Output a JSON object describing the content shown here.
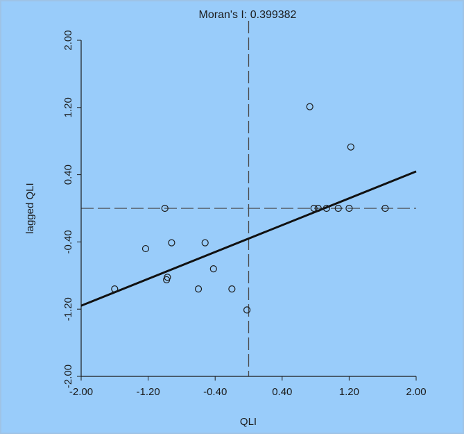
{
  "colors": {
    "background": "#99ccfa",
    "axis": "#1b1b1b",
    "points": "#1b1b1b",
    "regression_line": "#111111",
    "mean_lines": "#4a4a4a"
  },
  "chart_data": {
    "type": "scatter",
    "title": "Moran's I: 0.399382",
    "xlabel": "QLI",
    "ylabel": "lagged QLI",
    "xlim": [
      -2.0,
      2.0
    ],
    "ylim": [
      -2.0,
      2.0
    ],
    "x_ticks": [
      "-2.00",
      "-1.20",
      "-0.40",
      "0.40",
      "1.20",
      "2.00"
    ],
    "y_ticks": [
      "-2.00",
      "-1.20",
      "-0.40",
      "0.40",
      "1.20",
      "2.00"
    ],
    "grid": false,
    "mean_lines": {
      "x": 0.0,
      "y": 0.0,
      "style": "dashed"
    },
    "regression": {
      "slope": 0.399382,
      "intercept": -0.36
    },
    "points": [
      {
        "x": -1.6,
        "y": -0.96
      },
      {
        "x": -1.23,
        "y": -0.48
      },
      {
        "x": -1.0,
        "y": 0.0
      },
      {
        "x": -0.98,
        "y": -0.85
      },
      {
        "x": -0.97,
        "y": -0.82
      },
      {
        "x": -0.92,
        "y": -0.41
      },
      {
        "x": -0.6,
        "y": -0.96
      },
      {
        "x": -0.52,
        "y": -0.41
      },
      {
        "x": -0.42,
        "y": -0.72
      },
      {
        "x": -0.2,
        "y": -0.96
      },
      {
        "x": -0.02,
        "y": -1.21
      },
      {
        "x": 0.73,
        "y": 1.21
      },
      {
        "x": 0.78,
        "y": 0.0
      },
      {
        "x": 0.83,
        "y": 0.0
      },
      {
        "x": 0.93,
        "y": 0.0
      },
      {
        "x": 1.07,
        "y": 0.0
      },
      {
        "x": 1.2,
        "y": 0.0
      },
      {
        "x": 1.22,
        "y": 0.73
      },
      {
        "x": 1.63,
        "y": 0.0
      }
    ]
  }
}
